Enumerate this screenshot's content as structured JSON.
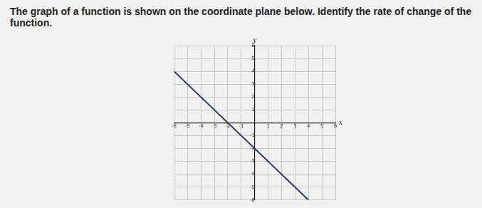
{
  "chart_data": {
    "type": "line",
    "title": "The graph of a function is shown on the coordinate plane below. Identify the rate of change of the function.",
    "xlabel": "x",
    "ylabel": "y",
    "x": [
      -6,
      4
    ],
    "values": [
      4,
      -6
    ],
    "color": "#2b3a67",
    "xlim": [
      -6,
      6
    ],
    "ylim": [
      -6,
      6
    ],
    "xticks": [
      -6,
      -5,
      -4,
      -3,
      -2,
      -1,
      1,
      2,
      3,
      4,
      5,
      6
    ],
    "yticks": [
      -6,
      -5,
      -4,
      -3,
      -2,
      -1,
      1,
      2,
      3,
      4,
      5,
      6
    ],
    "grid": true
  }
}
